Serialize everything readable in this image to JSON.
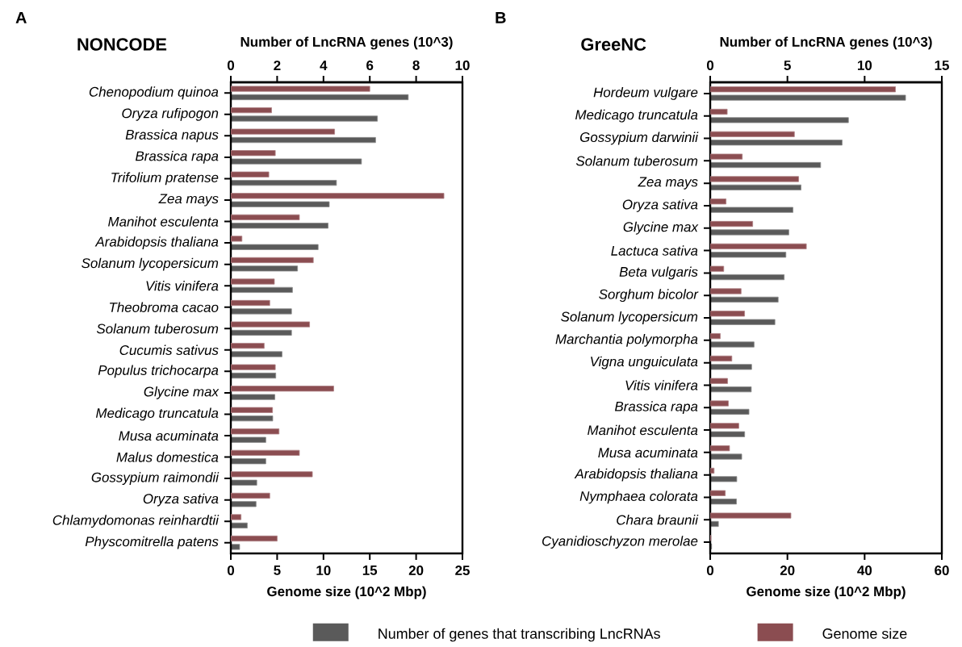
{
  "chart_data": [
    {
      "type": "bar",
      "orientation": "horizontal",
      "title": "NONCODE",
      "annotations": [
        "A"
      ],
      "x2label": "Number of LncRNA genes (10^3)",
      "xlabel": "Genome size (10^2 Mbp)",
      "categories": [
        "Chenopodium quinoa",
        "Oryza rufipogon",
        "Brassica napus",
        "Brassica rapa",
        "Trifolium pratense",
        "Zea mays",
        "Manihot esculenta",
        "Arabidopsis thaliana",
        "Solanum lycopersicum",
        "Vitis vinifera",
        "Theobroma cacao",
        "Solanum tuberosum",
        "Cucumis sativus",
        "Populus trichocarpa",
        "Glycine max",
        "Medicago truncatula",
        "Musa acuminata",
        "Malus domestica",
        "Gossypium raimondii",
        "Oryza sativa",
        "Chlamydomonas reinhardtii",
        "Physcomitrella patens"
      ],
      "series": [
        {
          "color": "#5a5a5a",
          "axis": "x2",
          "values": [
            7.66,
            6.33,
            6.25,
            5.64,
            4.56,
            4.25,
            4.2,
            3.77,
            2.88,
            2.66,
            2.62,
            2.62,
            2.21,
            1.94,
            1.9,
            1.81,
            1.51,
            1.51,
            1.12,
            1.09,
            0.71,
            0.38
          ]
        },
        {
          "color": "#8b4d51",
          "values": [
            15.0,
            4.4,
            11.2,
            4.8,
            4.1,
            23.0,
            7.4,
            1.2,
            8.9,
            4.7,
            4.2,
            8.5,
            3.6,
            4.8,
            11.1,
            4.5,
            5.2,
            7.4,
            8.8,
            4.2,
            1.1,
            5.0
          ]
        }
      ],
      "xlim": [
        0,
        25
      ],
      "xticks": [
        0,
        5,
        10,
        15,
        20,
        25
      ],
      "x2lim": [
        0,
        10
      ],
      "x2ticks": [
        0,
        2,
        4,
        6,
        8,
        10
      ]
    },
    {
      "type": "bar",
      "orientation": "horizontal",
      "title": "GreeNC",
      "annotations": [
        "B"
      ],
      "x2label": "Number of LncRNA genes (10^3)",
      "xlabel": "Genome size (10^2 Mbp)",
      "categories": [
        "Hordeum vulgare",
        "Medicago truncatula",
        "Gossypium darwinii",
        "Solanum tuberosum",
        "Zea mays",
        "Oryza sativa",
        "Glycine max",
        "Lactuca sativa",
        "Beta vulgaris",
        "Sorghum bicolor",
        "Solanum lycopersicum",
        "Marchantia polymorpha",
        "Vigna unguiculata",
        "Vitis vinifera",
        "Brassica rapa",
        "Manihot esculenta",
        "Musa acuminata",
        "Arabidopsis thaliana",
        "Nymphaea colorata",
        "Chara braunii",
        "Cyanidioschyzon merolae"
      ],
      "series": [
        {
          "name": "Number of genes that transcribing LncRNAs",
          "color": "#5a5a5a",
          "axis": "x2",
          "values": [
            12.65,
            8.95,
            8.54,
            7.15,
            5.88,
            5.36,
            5.09,
            4.9,
            4.79,
            4.4,
            4.19,
            2.84,
            2.68,
            2.66,
            2.51,
            2.23,
            2.04,
            1.72,
            1.7,
            0.53,
            0.09
          ]
        },
        {
          "name": "Genome size",
          "color": "#8b4d51",
          "values": [
            48.0,
            4.4,
            21.8,
            8.3,
            22.9,
            4.1,
            11.0,
            24.9,
            3.5,
            8.0,
            8.9,
            2.6,
            5.6,
            4.5,
            4.7,
            7.4,
            5.0,
            1.0,
            3.9,
            20.9,
            0.2
          ]
        }
      ],
      "xlim": [
        0,
        60
      ],
      "xticks": [
        0,
        20,
        40,
        60
      ],
      "x2lim": [
        0,
        15
      ],
      "x2ticks": [
        0,
        5,
        10,
        15
      ],
      "legend": "bottom"
    }
  ]
}
